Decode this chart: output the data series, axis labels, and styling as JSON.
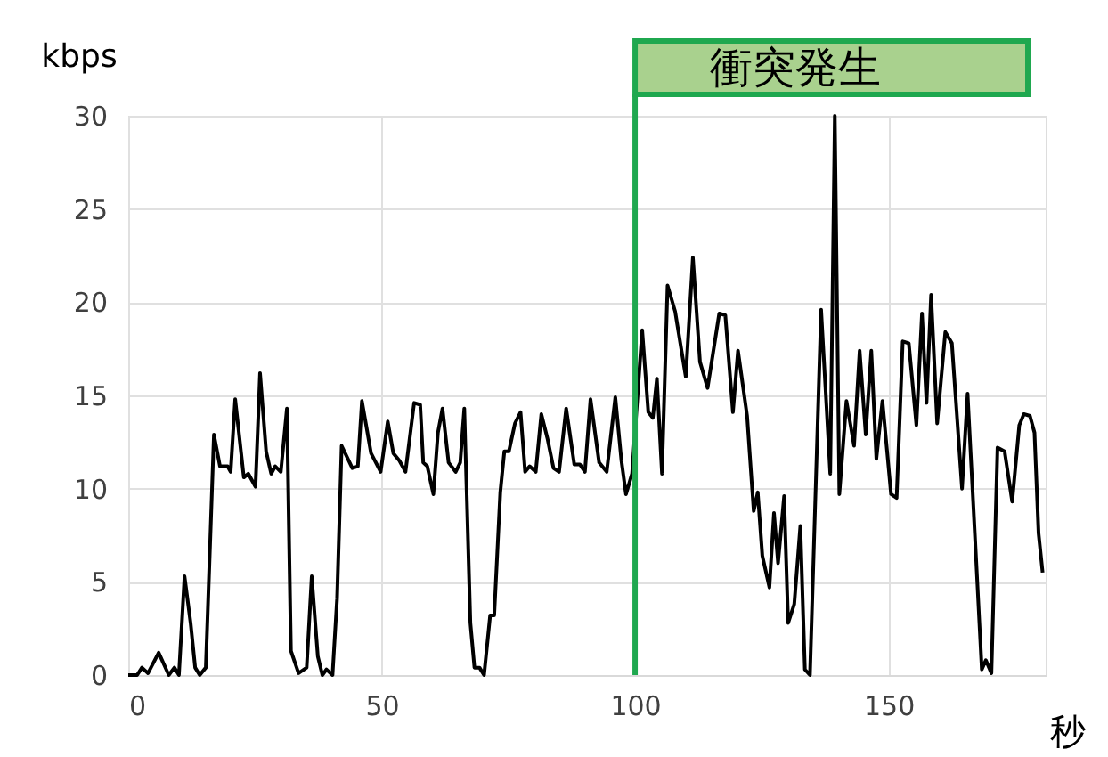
{
  "chart_data": {
    "type": "line",
    "xlabel": "秒",
    "ylabel": "kbps",
    "xlim": [
      0,
      181
    ],
    "ylim": [
      0,
      30
    ],
    "xticks": [
      0,
      50,
      100,
      150
    ],
    "yticks": [
      0,
      5,
      10,
      15,
      20,
      25,
      30
    ],
    "grid": true,
    "marker": "none",
    "line_style": "solid",
    "series": [
      {
        "color": "#000000",
        "x": [
          0,
          1.75,
          2.7,
          3.9,
          6,
          8,
          9.1,
          10,
          11.1,
          12.3,
          13.2,
          14.1,
          15.3,
          16.9,
          18.1,
          19.6,
          20.2,
          21.1,
          22.8,
          23.7,
          25.1,
          26,
          27.2,
          28.2,
          29,
          30.1,
          31.3,
          32.1,
          33.6,
          35.2,
          36.2,
          37.4,
          38.3,
          39.1,
          40.3,
          41.2,
          42.1,
          44.2,
          45.3,
          46.1,
          47.9,
          49.8,
          51.2,
          52.3,
          53.5,
          54.7,
          56.4,
          57.6,
          58.2,
          59,
          60.2,
          61.1,
          62,
          63.2,
          64.6,
          65.5,
          66.3,
          67.5,
          68.3,
          69.3,
          70.2,
          71.4,
          72.2,
          73.4,
          74.2,
          75.1,
          76.3,
          77.4,
          78.3,
          79.2,
          80.4,
          81.5,
          82.7,
          83.9,
          85,
          86.4,
          88,
          89.1,
          90.1,
          91.2,
          92.9,
          94.4,
          96.1,
          97.3,
          98.2,
          99.4,
          101.4,
          102.6,
          103.5,
          104.3,
          105.3,
          106.4,
          107.9,
          110,
          111.4,
          112.8,
          114.3,
          116.6,
          117.8,
          119.3,
          120.3,
          122.1,
          123.4,
          124.2,
          125.1,
          126.5,
          127.4,
          128.2,
          129.4,
          130.2,
          131.4,
          132.6,
          133.5,
          134.5,
          136.7,
          138.5,
          139.4,
          140.3,
          141.7,
          143.2,
          144.3,
          145.5,
          146.6,
          147.6,
          148.8,
          150.5,
          151.6,
          152.8,
          154,
          155.5,
          156.6,
          157.5,
          158.4,
          159.6,
          161.2,
          162.5,
          164.5,
          165.6,
          168.4,
          169.2,
          170.3,
          171.5,
          172.9,
          174.4,
          175.8,
          176.7,
          177.9,
          178.8,
          179.6,
          180.4
        ],
        "values": [
          0,
          0,
          0.4,
          0.1,
          1.2,
          0,
          0.4,
          0,
          5.3,
          2.8,
          0.4,
          0,
          0.4,
          12.9,
          11.2,
          11.2,
          10.9,
          14.8,
          10.6,
          10.8,
          10.1,
          16.2,
          12,
          10.8,
          11.2,
          10.9,
          14.3,
          1.3,
          0.1,
          0.4,
          5.3,
          1.0,
          0,
          0.3,
          0,
          4.1,
          12.3,
          11.1,
          11.2,
          14.7,
          11.9,
          10.9,
          13.6,
          11.9,
          11.5,
          10.9,
          14.6,
          14.5,
          11.4,
          11.2,
          9.7,
          13,
          14.3,
          11.4,
          10.9,
          11.4,
          14.3,
          2.8,
          0.4,
          0.4,
          0,
          3.2,
          3.2,
          9.8,
          12,
          12,
          13.5,
          14.1,
          10.9,
          11.2,
          10.9,
          14,
          12.7,
          11.1,
          10.9,
          14.3,
          11.3,
          11.3,
          10.9,
          14.8,
          11.4,
          10.9,
          14.9,
          11.5,
          9.7,
          10.8,
          18.5,
          14.1,
          13.8,
          15.9,
          10.8,
          20.9,
          19.5,
          16,
          22.4,
          16.8,
          15.4,
          19.4,
          19.3,
          14.1,
          17.4,
          13.9,
          8.8,
          9.8,
          6.4,
          4.7,
          8.7,
          6,
          9.6,
          2.8,
          3.8,
          8,
          0.3,
          0,
          19.6,
          10.8,
          30,
          9.7,
          14.7,
          12.3,
          17.4,
          12.9,
          17.4,
          11.6,
          14.7,
          9.7,
          9.5,
          17.9,
          17.8,
          13.4,
          19.4,
          14.6,
          20.4,
          13.5,
          18.4,
          17.8,
          10,
          15.1,
          0.3,
          0.8,
          0.1,
          12.2,
          12,
          9.3,
          13.4,
          14,
          13.9,
          13,
          7.6,
          5.5
        ]
      }
    ],
    "ref_lines": [
      {
        "axis": "x",
        "value": 100,
        "label": "衝突発生",
        "color": "#1fa84f"
      }
    ]
  }
}
